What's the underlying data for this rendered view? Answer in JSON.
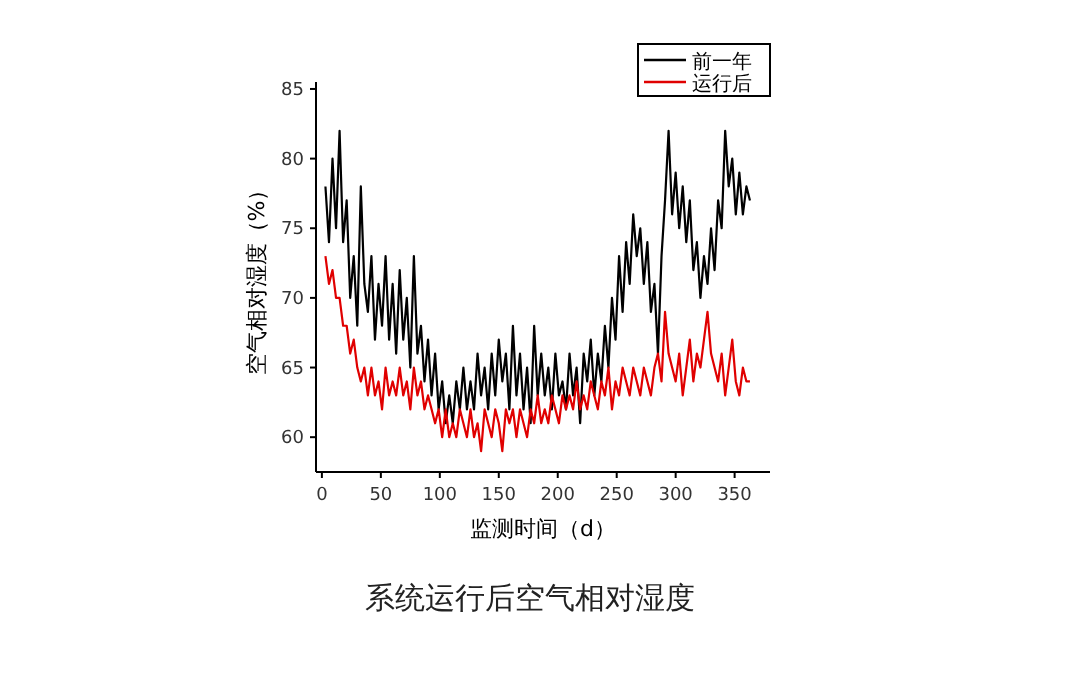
{
  "chart_data": {
    "type": "line",
    "title": "系统运行后空气相对湿度",
    "xlabel": "监测时间（d）",
    "ylabel": "空气相对湿度（%）",
    "xlim": [
      -5,
      380
    ],
    "xticks": [
      0,
      50,
      100,
      150,
      200,
      250,
      300,
      350
    ],
    "ylim": [
      57.5,
      85.5
    ],
    "yticks": [
      60,
      65,
      70,
      75,
      80,
      85
    ],
    "grid": false,
    "legend": "top right",
    "marker": "none",
    "line_style": "solid",
    "x": [
      3,
      6,
      9,
      12,
      15,
      18,
      21,
      24,
      27,
      30,
      33,
      36,
      39,
      42,
      45,
      48,
      51,
      54,
      57,
      60,
      63,
      66,
      69,
      72,
      75,
      78,
      81,
      84,
      87,
      90,
      93,
      96,
      99,
      102,
      105,
      108,
      111,
      114,
      117,
      120,
      123,
      126,
      129,
      132,
      135,
      138,
      141,
      144,
      147,
      150,
      153,
      156,
      159,
      162,
      165,
      168,
      171,
      174,
      177,
      180,
      183,
      186,
      189,
      192,
      195,
      198,
      201,
      204,
      207,
      210,
      213,
      216,
      219,
      222,
      225,
      228,
      231,
      234,
      237,
      240,
      243,
      246,
      249,
      252,
      255,
      258,
      261,
      264,
      267,
      270,
      273,
      276,
      279,
      282,
      285,
      288,
      291,
      294,
      297,
      300,
      303,
      306,
      309,
      312,
      315,
      318,
      321,
      324,
      327,
      330,
      333,
      336,
      339,
      342,
      345,
      348,
      351,
      354,
      357,
      360,
      363
    ],
    "series": [
      {
        "name": "前一年",
        "color": "#000000",
        "values": [
          78,
          74,
          80,
          75,
          82,
          74,
          77,
          70,
          73,
          68,
          78,
          71,
          69,
          73,
          67,
          71,
          68,
          73,
          67,
          71,
          66,
          72,
          67,
          70,
          65,
          73,
          66,
          68,
          64,
          67,
          63,
          66,
          62,
          64,
          61,
          63,
          61,
          64,
          62,
          65,
          62,
          64,
          62,
          66,
          63,
          65,
          62,
          66,
          63,
          67,
          64,
          66,
          62,
          68,
          63,
          66,
          62,
          65,
          61,
          68,
          63,
          66,
          63,
          65,
          62,
          66,
          63,
          64,
          62,
          66,
          63,
          65,
          61,
          66,
          64,
          67,
          63,
          66,
          64,
          68,
          65,
          70,
          67,
          73,
          69,
          74,
          71,
          76,
          73,
          75,
          71,
          74,
          69,
          71,
          66,
          73,
          77,
          82,
          76,
          79,
          75,
          78,
          74,
          77,
          72,
          74,
          70,
          73,
          71,
          75,
          72,
          77,
          75,
          82,
          78,
          80,
          76,
          79,
          76,
          78,
          77
        ]
      },
      {
        "name": "运行后",
        "color": "#e00000",
        "values": [
          73,
          71,
          72,
          70,
          70,
          68,
          68,
          66,
          67,
          65,
          64,
          65,
          63,
          65,
          63,
          64,
          62,
          65,
          63,
          64,
          63,
          65,
          63,
          64,
          62,
          65,
          63,
          64,
          62,
          63,
          62,
          61,
          62,
          60,
          62,
          60,
          61,
          60,
          62,
          61,
          60,
          62,
          60,
          61,
          59,
          62,
          61,
          60,
          62,
          61,
          59,
          62,
          61,
          62,
          60,
          62,
          61,
          60,
          62,
          61,
          63,
          61,
          62,
          61,
          63,
          62,
          61,
          63,
          62,
          63,
          62,
          64,
          62,
          63,
          62,
          64,
          63,
          62,
          64,
          63,
          65,
          62,
          64,
          63,
          65,
          64,
          63,
          65,
          64,
          63,
          65,
          64,
          63,
          65,
          66,
          64,
          69,
          66,
          65,
          64,
          66,
          63,
          65,
          67,
          64,
          66,
          65,
          67,
          69,
          66,
          65,
          64,
          66,
          63,
          65,
          67,
          64,
          63,
          65,
          64,
          64
        ]
      }
    ]
  }
}
